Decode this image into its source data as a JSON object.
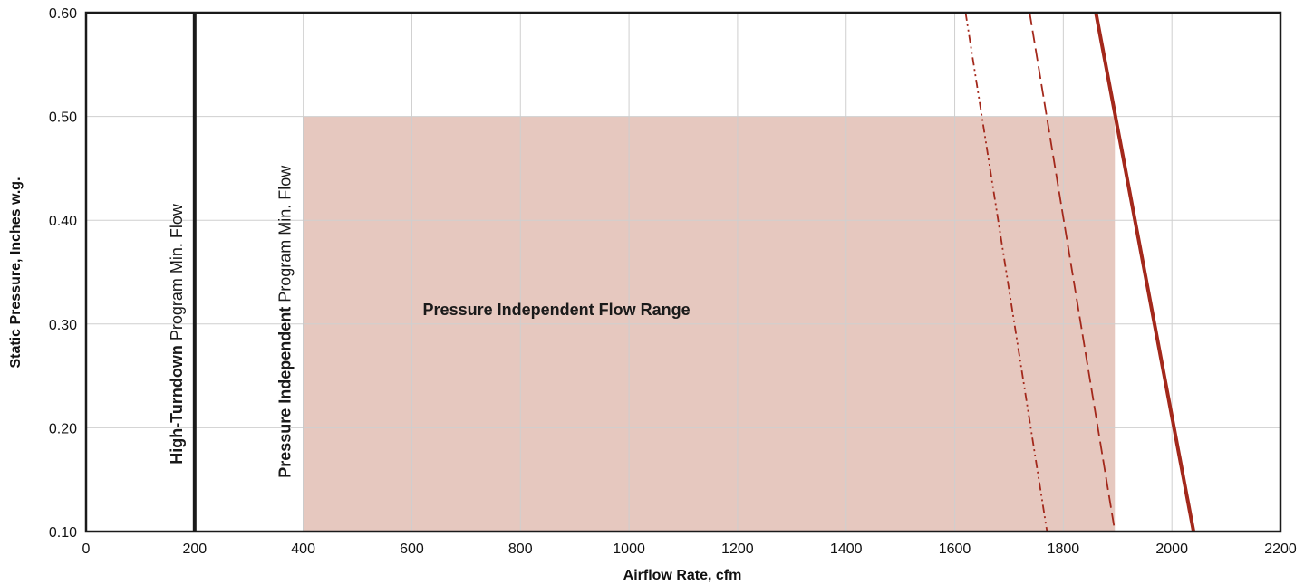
{
  "chart_data": {
    "type": "line",
    "title": "",
    "xlabel": "Airflow Rate, cfm",
    "ylabel": "Static Pressure, Inches w.g.",
    "xlim": [
      0,
      2200
    ],
    "ylim": [
      0.1,
      0.6
    ],
    "grid": true,
    "x_ticks": [
      "0",
      "200",
      "400",
      "600",
      "800",
      "1000",
      "1200",
      "1400",
      "1600",
      "1800",
      "2000",
      "2200"
    ],
    "y_ticks": [
      "0.10",
      "0.20",
      "0.30",
      "0.40",
      "0.50",
      "0.60"
    ],
    "shaded_region": {
      "label": "Pressure Independent Flow Range",
      "x": [
        400,
        1895
      ],
      "y": [
        0.1,
        0.5
      ],
      "color": "#e6c8bf"
    },
    "vertical_lines": [
      {
        "x": 200,
        "label_bold": "High-Turndown",
        "label_regular": "Program Min. Flow",
        "color": "#1a1a1a"
      },
      {
        "x": 400,
        "label_bold": "Pressure Independent",
        "label_regular": "Program Min. Flow",
        "color": "#c8c8c8"
      }
    ],
    "series": [
      {
        "style": "solid",
        "color": "#a3281b",
        "points": [
          [
            1860,
            0.6
          ],
          [
            2040,
            0.1
          ]
        ]
      },
      {
        "style": "dashed",
        "color": "#a3281b",
        "points": [
          [
            1738,
            0.6
          ],
          [
            1895,
            0.1
          ]
        ]
      },
      {
        "style": "dash-dot-dot",
        "color": "#a3281b",
        "points": [
          [
            1620,
            0.6
          ],
          [
            1770,
            0.1
          ]
        ]
      }
    ]
  }
}
